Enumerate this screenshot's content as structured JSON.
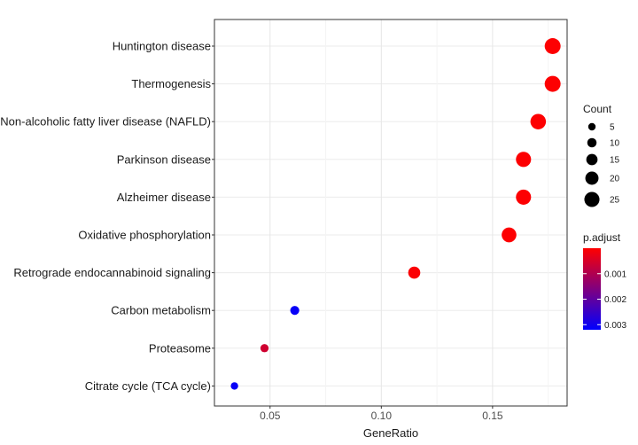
{
  "chart_data": {
    "type": "scatter",
    "xlabel": "GeneRatio",
    "xlim": [
      0.025,
      0.1835
    ],
    "xticks": [
      0.05,
      0.1,
      0.15
    ],
    "xtick_labels": [
      "0.05",
      "0.10",
      "0.15"
    ],
    "categories": [
      "Huntington disease",
      "Thermogenesis",
      "Non-alcoholic fatty liver disease (NAFLD)",
      "Parkinson disease",
      "Alzheimer disease",
      "Oxidative phosphorylation",
      "Retrograde endocannabinoid signaling",
      "Carbon metabolism",
      "Proteasome",
      "Citrate cycle (TCA cycle)"
    ],
    "points": [
      {
        "term": "Huntington disease",
        "gene_ratio": 0.177,
        "count": 27,
        "p_adjust": 2e-05
      },
      {
        "term": "Thermogenesis",
        "gene_ratio": 0.177,
        "count": 27,
        "p_adjust": 2e-05
      },
      {
        "term": "Non-alcoholic fatty liver disease (NAFLD)",
        "gene_ratio": 0.1705,
        "count": 26,
        "p_adjust": 2e-05
      },
      {
        "term": "Parkinson disease",
        "gene_ratio": 0.1639,
        "count": 25,
        "p_adjust": 2e-05
      },
      {
        "term": "Alzheimer disease",
        "gene_ratio": 0.1639,
        "count": 25,
        "p_adjust": 2e-05
      },
      {
        "term": "Oxidative phosphorylation",
        "gene_ratio": 0.1574,
        "count": 24,
        "p_adjust": 2e-05
      },
      {
        "term": "Retrograde endocannabinoid signaling",
        "gene_ratio": 0.1148,
        "count": 17,
        "p_adjust": 5e-05
      },
      {
        "term": "Carbon metabolism",
        "gene_ratio": 0.0611,
        "count": 9,
        "p_adjust": 0.0031
      },
      {
        "term": "Proteasome",
        "gene_ratio": 0.0475,
        "count": 7,
        "p_adjust": 0.0006
      },
      {
        "term": "Citrate cycle (TCA cycle)",
        "gene_ratio": 0.034,
        "count": 5,
        "p_adjust": 0.0031
      }
    ],
    "size_legend": {
      "title": "Count",
      "values": [
        5,
        10,
        15,
        20,
        25
      ],
      "labels": [
        "5",
        "10",
        "15",
        "20",
        "25"
      ]
    },
    "color_legend": {
      "title": "p.adjust",
      "min": 0.0,
      "max": 0.0032,
      "low_color": "#ff0000",
      "high_color": "#0000ff",
      "ticks": [
        0.001,
        0.002,
        0.003
      ],
      "tick_labels": [
        "0.001",
        "0.002",
        "0.003"
      ]
    },
    "grid": true,
    "legend_position": "right"
  }
}
